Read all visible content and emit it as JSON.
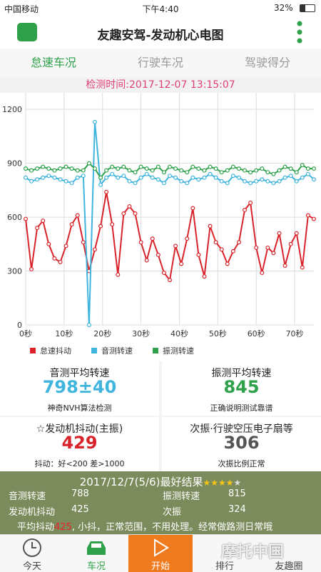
{
  "status_bar": {
    "carrier": "中国移动",
    "time": "下午4:40",
    "battery": "32%"
  },
  "header": {
    "title": "友趣安驾-发动机心电图"
  },
  "tabs": [
    "怠速车况",
    "行驶车况",
    "驾驶得分"
  ],
  "test_time": "检测时间:2017-12-07 13:15:07",
  "chart_data": {
    "type": "line",
    "x": [
      0,
      1.5,
      3,
      4.5,
      6,
      7.5,
      9,
      10.5,
      12,
      13.5,
      15,
      16.5,
      18,
      19.5,
      21,
      22.5,
      24,
      25.5,
      27,
      28.5,
      30,
      31.5,
      33,
      34.5,
      36,
      37.5,
      39,
      40.5,
      42,
      43.5,
      45,
      46.5,
      48,
      49.5,
      51,
      52.5,
      54,
      55.5,
      57,
      58.5,
      60,
      61.5,
      63,
      64.5,
      66,
      67.5,
      69,
      70.5,
      72,
      73.5,
      75
    ],
    "series": [
      {
        "name": "怠速抖动",
        "color": "#d9232a",
        "values": [
          590,
          310,
          540,
          580,
          450,
          370,
          350,
          440,
          560,
          610,
          460,
          300,
          420,
          550,
          740,
          560,
          280,
          620,
          660,
          620,
          460,
          360,
          480,
          390,
          290,
          250,
          440,
          340,
          480,
          650,
          390,
          270,
          550,
          460,
          420,
          340,
          410,
          460,
          640,
          680,
          430,
          290,
          430,
          400,
          510,
          330,
          450,
          510,
          320,
          610,
          590
        ]
      },
      {
        "name": "音测转速",
        "color": "#3fb4dc",
        "values": [
          820,
          800,
          810,
          820,
          830,
          820,
          810,
          800,
          790,
          820,
          830,
          0,
          1130,
          780,
          820,
          840,
          820,
          830,
          800,
          790,
          820,
          840,
          820,
          810,
          790,
          830,
          820,
          800,
          790,
          820,
          810,
          820,
          840,
          820,
          800,
          790,
          830,
          820,
          800,
          790,
          800,
          810,
          800,
          790,
          800,
          820,
          830,
          800,
          820,
          840,
          810
        ]
      },
      {
        "name": "振测转速",
        "color": "#2fa14a",
        "values": [
          870,
          860,
          870,
          880,
          870,
          860,
          870,
          880,
          870,
          860,
          860,
          900,
          870,
          820,
          860,
          880,
          870,
          880,
          860,
          850,
          880,
          870,
          860,
          880,
          850,
          880,
          870,
          860,
          850,
          880,
          870,
          860,
          880,
          870,
          850,
          860,
          880,
          870,
          860,
          850,
          860,
          870,
          850,
          840,
          860,
          880,
          870,
          850,
          890,
          870,
          870
        ]
      }
    ],
    "xlim": [
      0,
      75
    ],
    "xticks": [
      {
        "value": 0,
        "label": "0秒"
      },
      {
        "value": 10,
        "label": "10秒"
      },
      {
        "value": 20,
        "label": "20秒"
      },
      {
        "value": 30,
        "label": "30秒"
      },
      {
        "value": 40,
        "label": "40秒"
      },
      {
        "value": 50,
        "label": "50秒"
      },
      {
        "value": 60,
        "label": "60秒"
      },
      {
        "value": 70,
        "label": "70秒"
      }
    ],
    "ylim": [
      0,
      1300
    ],
    "yticks": [
      0,
      300,
      600,
      900,
      1200
    ],
    "grid": true,
    "legend": "bottom"
  },
  "stats": [
    {
      "title": "音测平均转速",
      "value": "798±40",
      "note": "神奇NVH算法检测",
      "color": "#3fb4dc"
    },
    {
      "title": "振测平均转速",
      "value": 845,
      "note": "正确说明测试靠谱",
      "color": "#2fa14a"
    },
    {
      "title": "☆发动机抖动(主振)",
      "value": 429,
      "note": "抖动：好<200 差>1000",
      "color": "#d9232a"
    },
    {
      "title": "次振·行驶空压电子扇等",
      "value": 306,
      "note": "次振比例正常",
      "color": "#555555"
    }
  ],
  "result": {
    "title": "2017/12/7(5/6)最好结果",
    "stars_filled": "★★★★",
    "stars_empty": "★",
    "rows": [
      [
        "音测转速",
        788,
        "振测转速",
        815
      ],
      [
        "发动机抖动",
        425,
        "次振",
        324
      ]
    ],
    "summary_prefix": "平均抖动",
    "summary_value": 425,
    "summary_rest": ", 小抖，正常范围，不用处理。经常做路测日常哦"
  },
  "nav": [
    "今天",
    "车况",
    "开始",
    "排行",
    "友趣圈"
  ],
  "watermark": "摩托中国"
}
